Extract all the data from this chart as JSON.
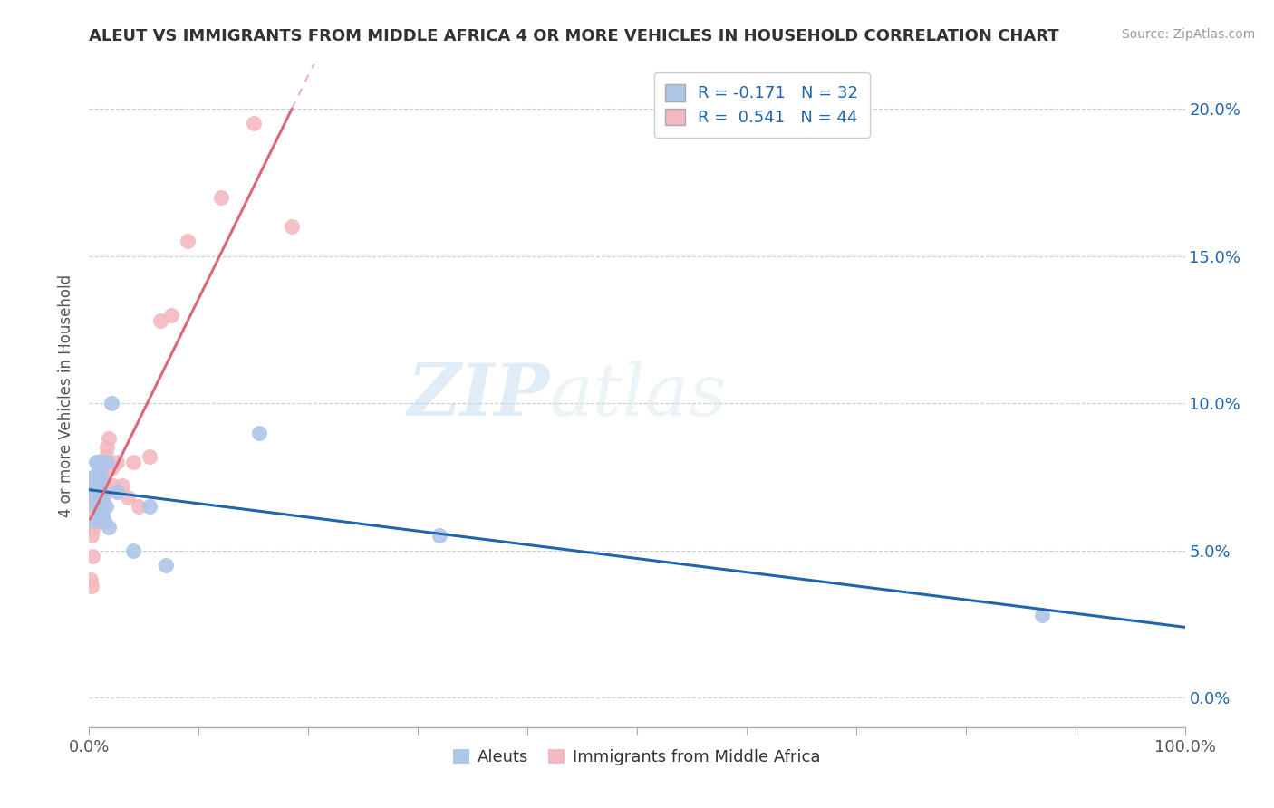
{
  "title": "ALEUT VS IMMIGRANTS FROM MIDDLE AFRICA 4 OR MORE VEHICLES IN HOUSEHOLD CORRELATION CHART",
  "source": "Source: ZipAtlas.com",
  "ylabel": "4 or more Vehicles in Household",
  "xlabel": "",
  "xmin": 0.0,
  "xmax": 1.0,
  "ymin": -0.01,
  "ymax": 0.215,
  "yticks": [
    0.0,
    0.05,
    0.1,
    0.15,
    0.2
  ],
  "ytick_labels": [
    "0.0%",
    "5.0%",
    "10.0%",
    "15.0%",
    "20.0%"
  ],
  "xtick_labels_show": [
    "0.0%",
    "100.0%"
  ],
  "legend_labels": [
    "Aleuts",
    "Immigrants from Middle Africa"
  ],
  "aleut_color": "#aec6e8",
  "immigrant_color": "#f4b8c1",
  "aleut_line_color": "#2166ac",
  "immigrant_line_color": "#d9687a",
  "R_aleut": -0.171,
  "N_aleut": 32,
  "R_immigrant": 0.541,
  "N_immigrant": 44,
  "watermark_zip": "ZIP",
  "watermark_atlas": "atlas",
  "background_color": "#ffffff",
  "grid_color": "#cccccc",
  "aleut_x": [
    0.003,
    0.004,
    0.005,
    0.005,
    0.006,
    0.006,
    0.007,
    0.007,
    0.007,
    0.008,
    0.008,
    0.009,
    0.009,
    0.01,
    0.01,
    0.01,
    0.011,
    0.012,
    0.012,
    0.013,
    0.014,
    0.015,
    0.016,
    0.018,
    0.02,
    0.025,
    0.04,
    0.055,
    0.07,
    0.155,
    0.32,
    0.87
  ],
  "aleut_y": [
    0.068,
    0.072,
    0.06,
    0.075,
    0.065,
    0.08,
    0.073,
    0.075,
    0.08,
    0.068,
    0.07,
    0.062,
    0.078,
    0.065,
    0.075,
    0.08,
    0.068,
    0.062,
    0.07,
    0.065,
    0.06,
    0.065,
    0.08,
    0.058,
    0.1,
    0.07,
    0.05,
    0.065,
    0.045,
    0.09,
    0.055,
    0.028
  ],
  "immigrant_x": [
    0.001,
    0.002,
    0.002,
    0.003,
    0.003,
    0.004,
    0.004,
    0.005,
    0.005,
    0.005,
    0.006,
    0.006,
    0.007,
    0.007,
    0.007,
    0.008,
    0.008,
    0.009,
    0.009,
    0.009,
    0.01,
    0.01,
    0.011,
    0.011,
    0.012,
    0.013,
    0.014,
    0.015,
    0.016,
    0.018,
    0.02,
    0.022,
    0.025,
    0.03,
    0.035,
    0.04,
    0.045,
    0.055,
    0.065,
    0.075,
    0.09,
    0.12,
    0.15,
    0.185
  ],
  "immigrant_y": [
    0.04,
    0.038,
    0.055,
    0.048,
    0.062,
    0.058,
    0.068,
    0.06,
    0.068,
    0.075,
    0.062,
    0.072,
    0.065,
    0.068,
    0.075,
    0.062,
    0.072,
    0.06,
    0.068,
    0.075,
    0.068,
    0.075,
    0.068,
    0.075,
    0.07,
    0.068,
    0.075,
    0.082,
    0.085,
    0.088,
    0.078,
    0.072,
    0.08,
    0.072,
    0.068,
    0.08,
    0.065,
    0.082,
    0.128,
    0.13,
    0.155,
    0.17,
    0.195,
    0.16
  ]
}
